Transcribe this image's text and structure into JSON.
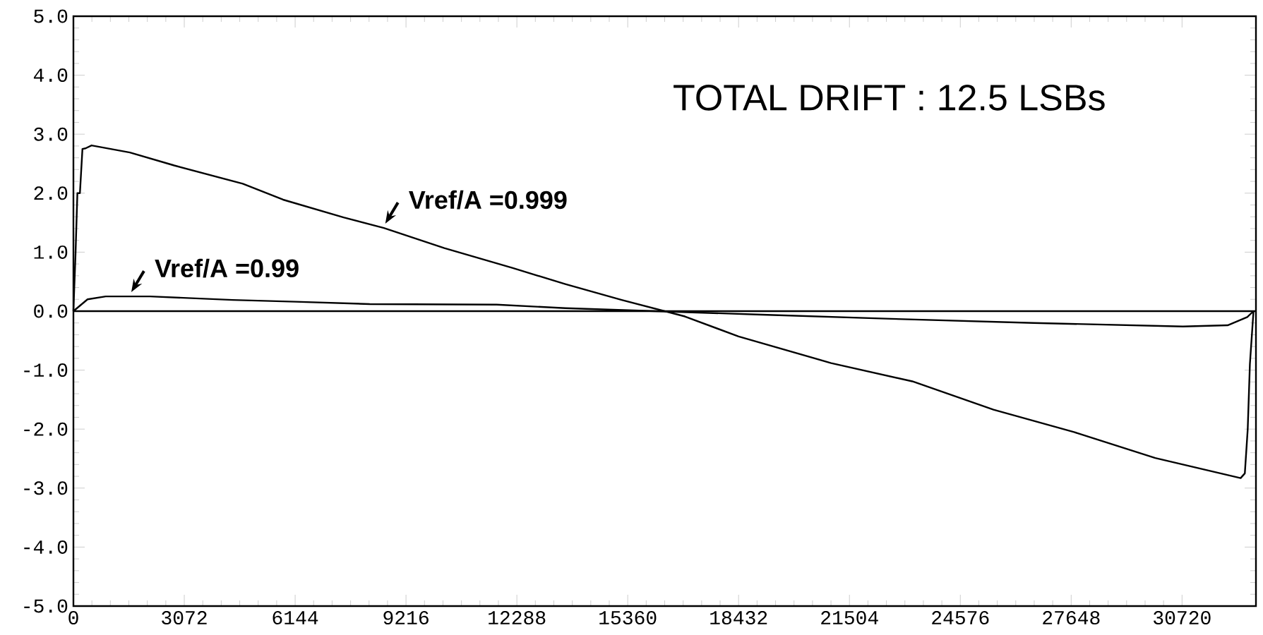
{
  "chart_data": {
    "type": "line",
    "xlim": [
      0,
      32768
    ],
    "ylim": [
      -5,
      5
    ],
    "xticks": [
      0,
      3072,
      6144,
      9216,
      12288,
      15360,
      18432,
      21504,
      24576,
      27648,
      30720
    ],
    "yticks": [
      {
        "value": -5,
        "label": "-5.0"
      },
      {
        "value": -4,
        "label": "-4.0"
      },
      {
        "value": -3,
        "label": "-3.0"
      },
      {
        "value": -2,
        "label": "-2.0"
      },
      {
        "value": -1,
        "label": "-1.0"
      },
      {
        "value": 0,
        "label": "0.0"
      },
      {
        "value": 1,
        "label": "1.0"
      },
      {
        "value": 2,
        "label": "2.0"
      },
      {
        "value": 3,
        "label": "3.0"
      },
      {
        "value": 4,
        "label": "4.0"
      },
      {
        "value": 5,
        "label": "5.0"
      }
    ],
    "grid": false,
    "marker": "none",
    "line_style": "solid",
    "ref_lines": [
      {
        "axis": "y",
        "value": 0,
        "color": "#000000"
      }
    ],
    "annotations": [
      "TOTAL DRIFT : 12.5 LSBs",
      {
        "text": "Vref/A =0.999",
        "x": 8602,
        "y": 1.41
      },
      {
        "text": "Vref/A =0.99",
        "x": 1564,
        "y": 0.25
      }
    ],
    "series": [
      {
        "color": "#000000",
        "x": [
          0,
          60,
          110,
          180,
          250,
          335,
          503,
          1564,
          2793,
          4692,
          5809,
          7485,
          8602,
          10277,
          12176,
          13629,
          15193,
          16945,
          18432,
          20995,
          23245,
          25495,
          27727,
          29977,
          32344,
          32460,
          32540,
          32600,
          32700
        ],
        "values": [
          0,
          1.0,
          2.0,
          2.0,
          2.75,
          2.76,
          2.81,
          2.69,
          2.47,
          2.16,
          1.89,
          1.59,
          1.41,
          1.07,
          0.73,
          0.46,
          0.19,
          -0.09,
          -0.43,
          -0.88,
          -1.19,
          -1.67,
          -2.05,
          -2.49,
          -2.83,
          -2.75,
          -2.0,
          -0.9,
          0.0
        ]
      },
      {
        "color": "#000000",
        "x": [
          0,
          391,
          894,
          2123,
          4413,
          6144,
          8211,
          11729,
          13629,
          19080,
          22669,
          26607,
          30743,
          31983,
          32528,
          32700
        ],
        "values": [
          0,
          0.2,
          0.25,
          0.25,
          0.19,
          0.16,
          0.12,
          0.11,
          0.05,
          -0.06,
          -0.13,
          -0.2,
          -0.26,
          -0.24,
          -0.1,
          0.0
        ]
      }
    ]
  }
}
